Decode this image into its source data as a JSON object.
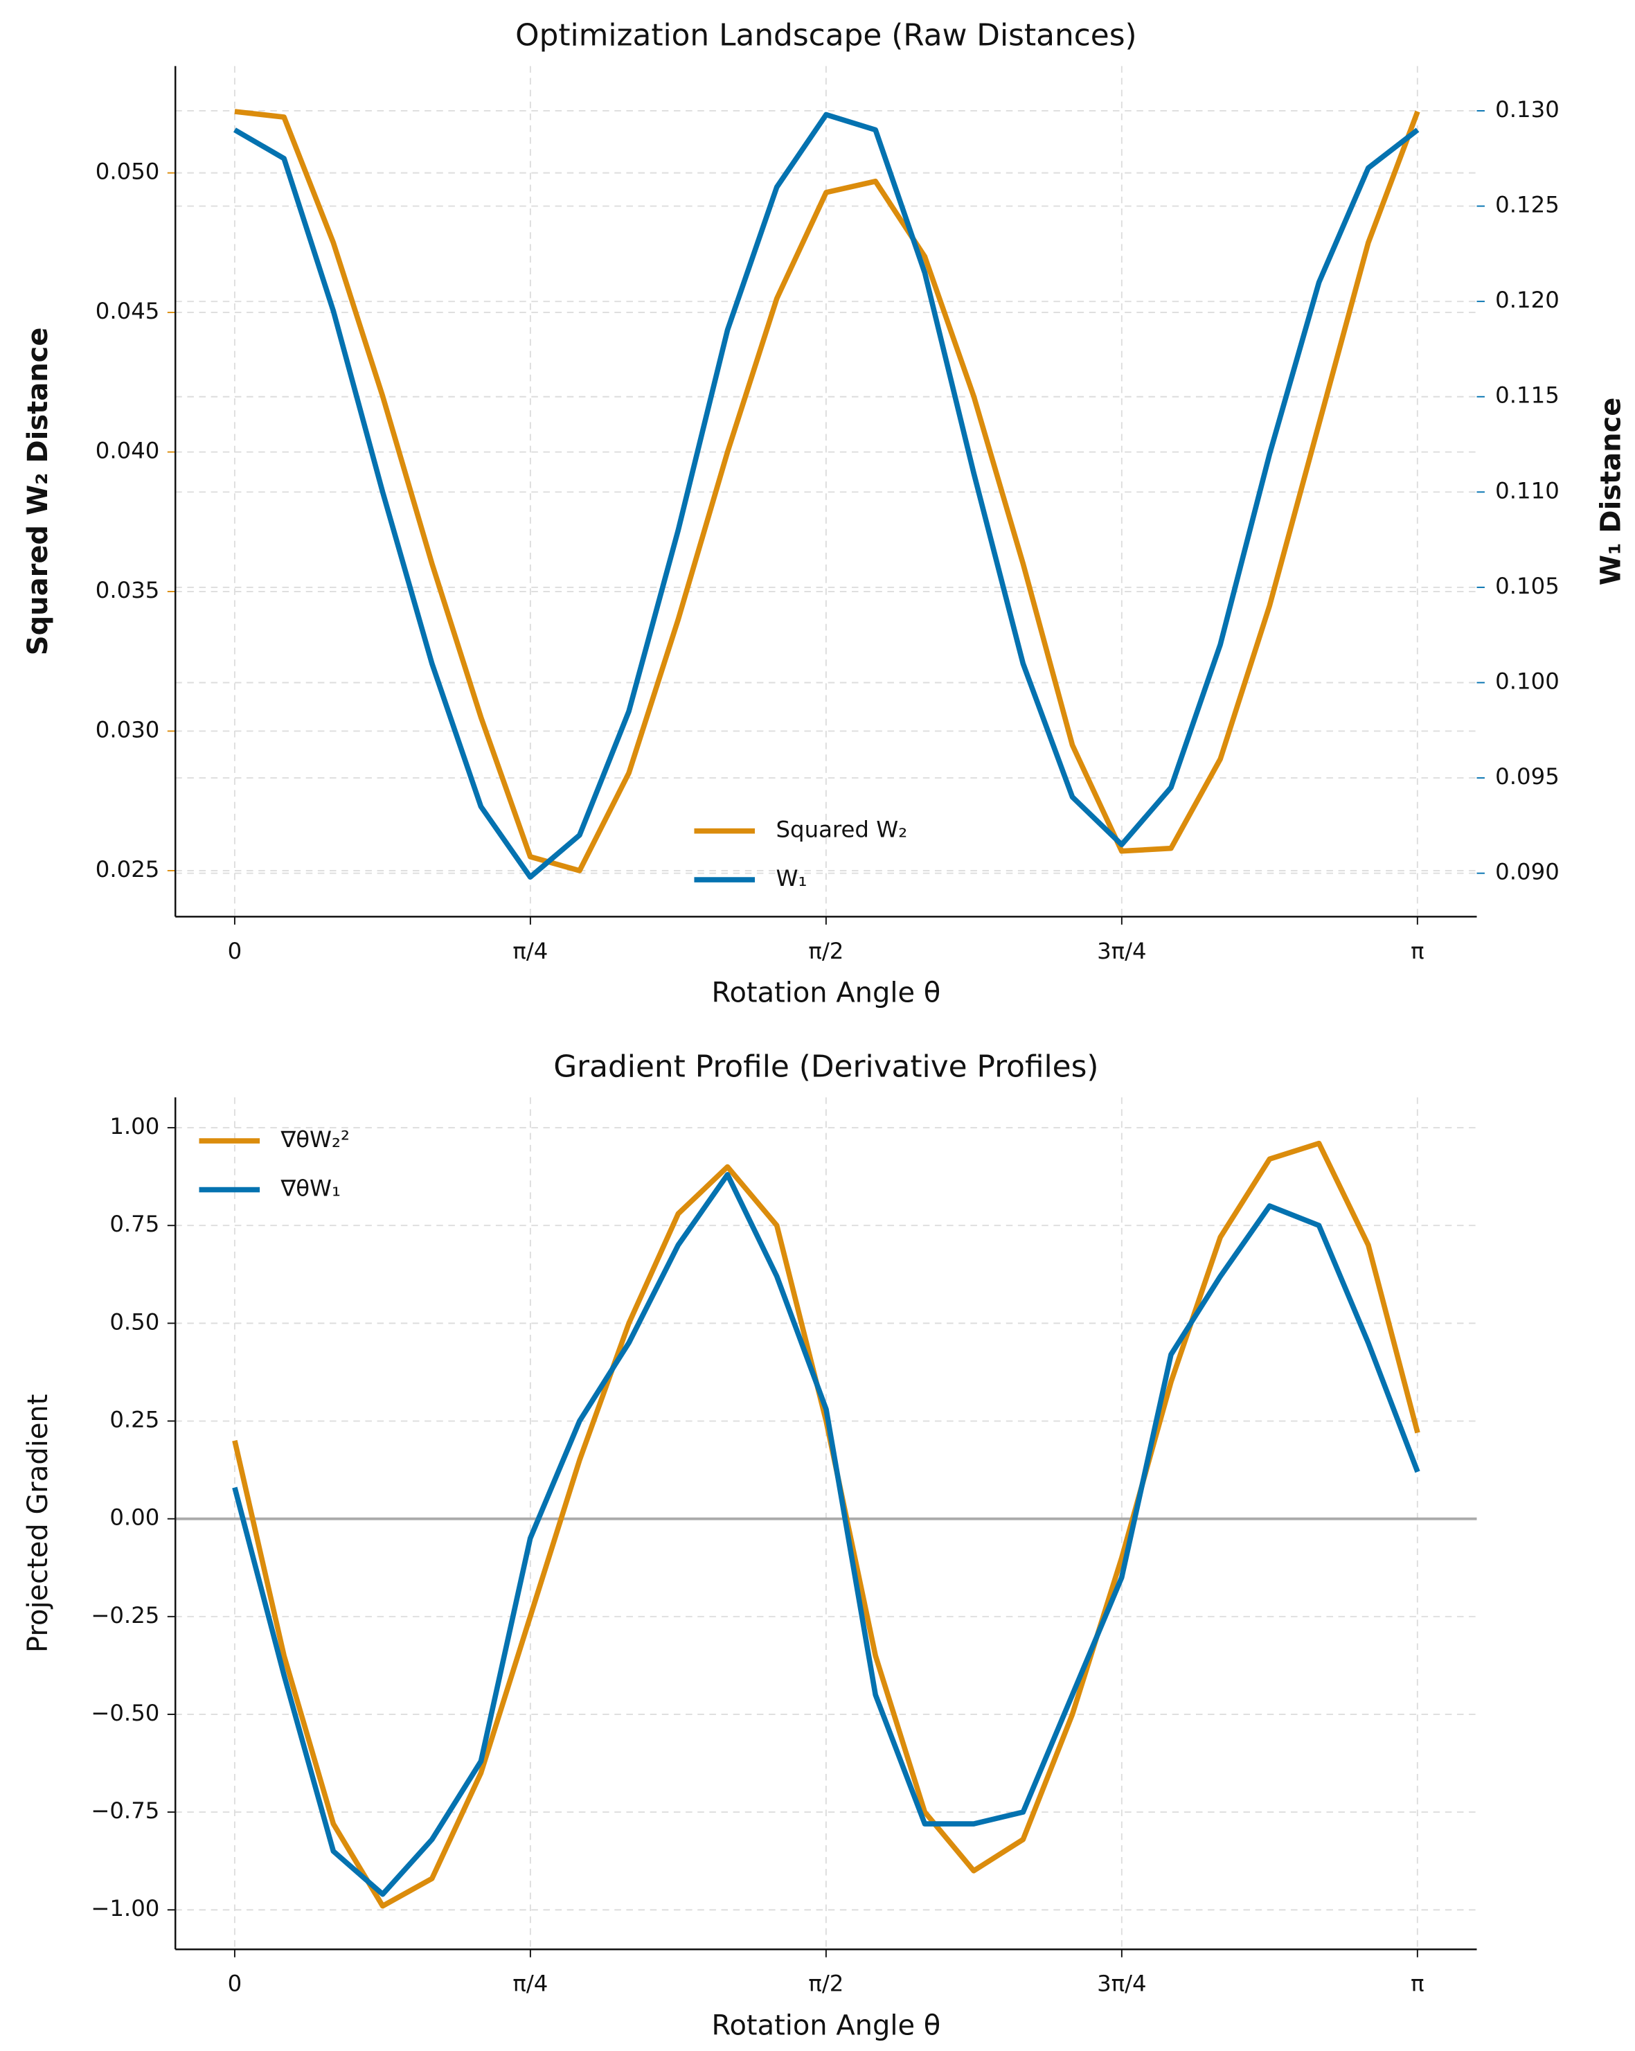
{
  "chart_data": [
    {
      "type": "line",
      "title": "Optimization Landscape (Raw Distances)",
      "xlabel": "Rotation Angle θ",
      "ylabel": "Squared W₂ Distance",
      "y2label": "W₁ Distance",
      "x": [
        0,
        0.131,
        0.262,
        0.393,
        0.524,
        0.654,
        0.785,
        0.916,
        1.047,
        1.178,
        1.309,
        1.44,
        1.571,
        1.702,
        1.833,
        1.963,
        2.094,
        2.225,
        2.356,
        2.487,
        2.618,
        2.749,
        2.88,
        3.011,
        3.142
      ],
      "series": [
        {
          "name": "Squared W₂",
          "color": "#db8c0c",
          "values": [
            0.0522,
            0.052,
            0.0475,
            0.042,
            0.036,
            0.0305,
            0.0255,
            0.025,
            0.0285,
            0.034,
            0.04,
            0.0455,
            0.0493,
            0.0497,
            0.047,
            0.042,
            0.036,
            0.0295,
            0.0257,
            0.0258,
            0.029,
            0.0345,
            0.041,
            0.0475,
            0.0522
          ]
        },
        {
          "name": "W₁",
          "color": "#0472b0",
          "axis": "y2",
          "values": [
            0.129,
            0.1275,
            0.1195,
            0.11,
            0.101,
            0.0935,
            0.0898,
            0.092,
            0.0985,
            0.108,
            0.1185,
            0.126,
            0.1298,
            0.129,
            0.1215,
            0.111,
            0.101,
            0.094,
            0.0915,
            0.0945,
            0.102,
            0.112,
            0.121,
            0.127,
            0.129
          ]
        }
      ],
      "xlim": [
        -0.1576,
        3.2992
      ],
      "xticks": [
        0,
        {
          "value": 0.7854,
          "label": "π/4"
        },
        {
          "value": 1.5708,
          "label": "π/2"
        },
        {
          "value": 2.3562,
          "label": "3π/4"
        },
        {
          "value": 3.1416,
          "label": "π"
        }
      ],
      "ylim": [
        0.02335,
        0.05383
      ],
      "yticks": [
        0.025,
        {
          "value": 0.03,
          "label": "0.030"
        },
        0.035,
        {
          "value": 0.04,
          "label": "0.040"
        },
        0.045,
        {
          "value": 0.05,
          "label": "0.050"
        }
      ],
      "y2lim": [
        0.08772,
        0.13235
      ],
      "y2ticks": [
        {
          "value": 0.09,
          "label": "0.090"
        },
        0.095,
        {
          "value": 0.1,
          "label": "0.100"
        },
        0.105,
        {
          "value": 0.11,
          "label": "0.110"
        },
        0.115,
        {
          "value": 0.12,
          "label": "0.120"
        },
        0.125,
        {
          "value": 0.13,
          "label": "0.130"
        }
      ],
      "grid": true,
      "legend": "lower center"
    },
    {
      "type": "line",
      "title": "Gradient Profile (Derivative Profiles)",
      "xlabel": "Rotation Angle θ",
      "ylabel": "Projected Gradient",
      "x": [
        0,
        0.131,
        0.262,
        0.393,
        0.524,
        0.654,
        0.785,
        0.916,
        1.047,
        1.178,
        1.309,
        1.44,
        1.571,
        1.702,
        1.833,
        1.963,
        2.094,
        2.225,
        2.356,
        2.487,
        2.618,
        2.749,
        2.88,
        3.011,
        3.142
      ],
      "series": [
        {
          "name": "∇θW₂²",
          "color": "#db8c0c",
          "values": [
            0.2,
            -0.35,
            -0.78,
            -0.99,
            -0.92,
            -0.65,
            -0.25,
            0.15,
            0.5,
            0.78,
            0.9,
            0.75,
            0.25,
            -0.35,
            -0.75,
            -0.9,
            -0.82,
            -0.5,
            -0.1,
            0.35,
            0.72,
            0.92,
            0.96,
            0.7,
            0.22
          ]
        },
        {
          "name": "∇θW₁",
          "color": "#0472b0",
          "values": [
            0.08,
            -0.4,
            -0.85,
            -0.96,
            -0.82,
            -0.62,
            -0.05,
            0.25,
            0.45,
            0.7,
            0.88,
            0.62,
            0.28,
            -0.45,
            -0.78,
            -0.78,
            -0.75,
            -0.45,
            -0.15,
            0.42,
            0.62,
            0.8,
            0.75,
            0.45,
            0.12
          ]
        }
      ],
      "xlim": [
        -0.1576,
        3.2992
      ],
      "xticks": [
        0,
        {
          "value": 0.7854,
          "label": "π/4"
        },
        {
          "value": 1.5708,
          "label": "π/2"
        },
        {
          "value": 2.3562,
          "label": "3π/4"
        },
        {
          "value": 3.1416,
          "label": "π"
        }
      ],
      "ylim": [
        -1.101,
        1.0776
      ],
      "yticks": [
        {
          "value": -1,
          "label": "−1.00"
        },
        {
          "value": -0.75,
          "label": "−0.75"
        },
        {
          "value": -0.5,
          "label": "−0.50"
        },
        {
          "value": -0.25,
          "label": "−0.25"
        },
        {
          "value": 0,
          "label": "0.00"
        },
        {
          "value": 0.25,
          "label": "0.25"
        },
        {
          "value": 0.5,
          "label": "0.50"
        },
        {
          "value": 0.75,
          "label": "0.75"
        },
        {
          "value": 1,
          "label": "1.00"
        }
      ],
      "hline": 0,
      "grid": true,
      "legend": "upper left"
    }
  ]
}
